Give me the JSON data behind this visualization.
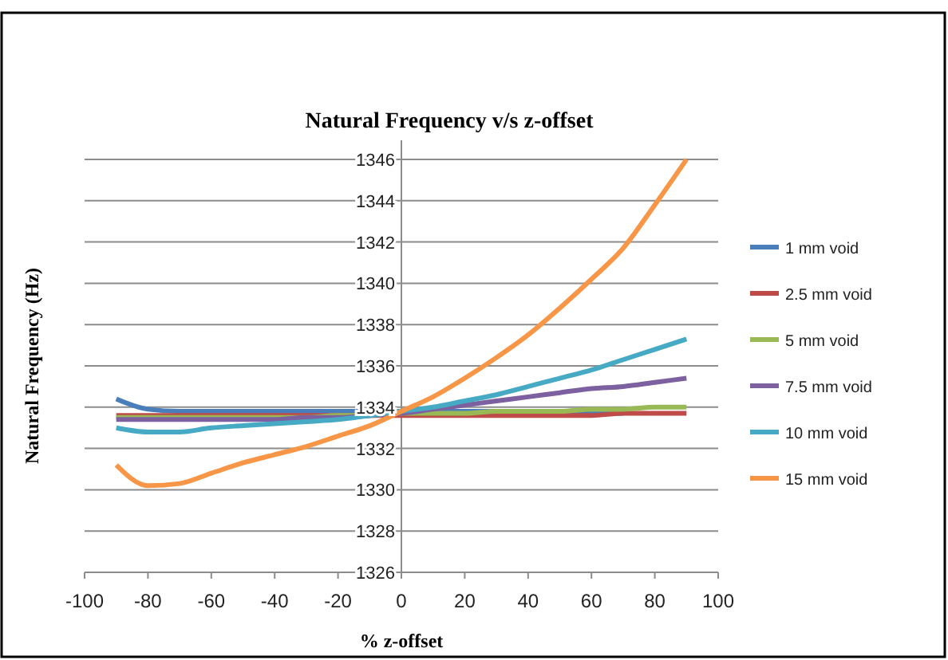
{
  "chart_data": {
    "type": "line",
    "title": "Natural Frequency v/s z-offset",
    "xlabel": "% z-offset",
    "ylabel": "Natural Frequency (Hz)",
    "x": [
      -90,
      -80,
      -70,
      -60,
      -50,
      -40,
      -30,
      -20,
      -10,
      0,
      10,
      20,
      30,
      40,
      50,
      60,
      70,
      80,
      90
    ],
    "series": [
      {
        "name": "1 mm void",
        "color": "#4a7ebb",
        "values": [
          1334.4,
          1333.9,
          1333.8,
          1333.8,
          1333.8,
          1333.8,
          1333.8,
          1333.8,
          1333.8,
          1333.8,
          1333.8,
          1333.8,
          1333.8,
          1333.8,
          1333.7,
          1333.7,
          1333.7,
          null,
          null
        ]
      },
      {
        "name": "2.5 mm void",
        "color": "#be4b48",
        "values": [
          1333.6,
          1333.6,
          1333.6,
          1333.6,
          1333.6,
          1333.6,
          1333.6,
          1333.6,
          1333.6,
          1333.6,
          1333.6,
          1333.6,
          1333.6,
          1333.6,
          1333.6,
          1333.6,
          1333.7,
          1333.7,
          1333.7
        ]
      },
      {
        "name": "5 mm void",
        "color": "#98b954",
        "values": [
          1333.5,
          1333.5,
          1333.5,
          1333.5,
          1333.5,
          1333.5,
          1333.5,
          1333.6,
          1333.6,
          1333.7,
          1333.7,
          1333.7,
          1333.8,
          1333.8,
          1333.8,
          1333.9,
          1333.9,
          1334.0,
          1334.0
        ]
      },
      {
        "name": "7.5 mm void",
        "color": "#7d60a0",
        "values": [
          1333.4,
          1333.4,
          1333.4,
          1333.4,
          1333.4,
          1333.4,
          1333.5,
          1333.5,
          1333.6,
          1333.7,
          1333.9,
          1334.1,
          1334.3,
          1334.5,
          1334.7,
          1334.9,
          1335.0,
          1335.2,
          1335.4
        ]
      },
      {
        "name": "10 mm void",
        "color": "#46aac5",
        "values": [
          1333.0,
          1332.8,
          1332.8,
          1333.0,
          1333.1,
          1333.2,
          1333.3,
          1333.4,
          1333.6,
          1333.8,
          1334.0,
          1334.3,
          1334.6,
          1335.0,
          1335.4,
          1335.8,
          1336.3,
          1336.8,
          1337.3
        ]
      },
      {
        "name": "15 mm void",
        "color": "#f79646",
        "values": [
          1331.2,
          1330.2,
          1330.3,
          1330.8,
          1331.3,
          1331.7,
          1332.1,
          1332.6,
          1333.1,
          1333.8,
          1334.5,
          1335.4,
          1336.4,
          1337.5,
          1338.8,
          1340.2,
          1341.7,
          1343.8,
          1346.0
        ]
      }
    ],
    "xlim": [
      -100,
      100
    ],
    "xticks": [
      -100,
      -80,
      -60,
      -40,
      -20,
      0,
      20,
      40,
      60,
      80,
      100
    ],
    "ylim": [
      1326,
      1346
    ],
    "yticks": [
      1326,
      1328,
      1330,
      1332,
      1334,
      1336,
      1338,
      1340,
      1342,
      1344,
      1346
    ],
    "grid": "y",
    "legend": "right"
  }
}
